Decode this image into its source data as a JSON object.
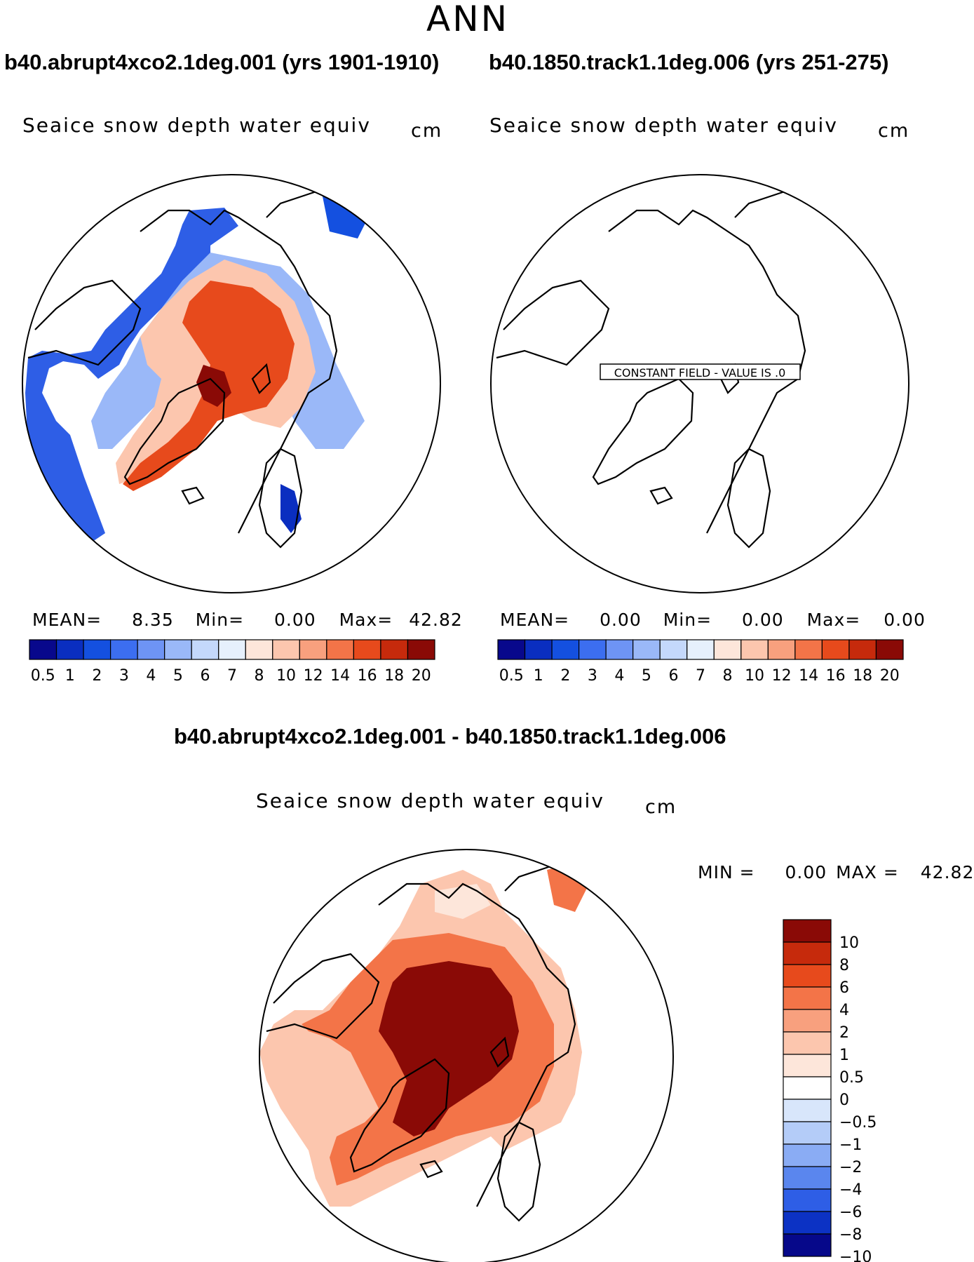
{
  "page": {
    "title": "ANN"
  },
  "panels": {
    "left": {
      "case_title": "b40.abrupt4xco2.1deg.001 (yrs 1901-1910)",
      "var_title": "Seaice snow depth water equiv",
      "units": "cm",
      "mean_label": "MEAN=",
      "mean": "8.35",
      "min_label": "Min=",
      "min": "0.00",
      "max_label": "Max=",
      "max": "42.82"
    },
    "right": {
      "case_title": "b40.1850.track1.1deg.006 (yrs 251-275)",
      "var_title": "Seaice snow depth water equiv",
      "units": "cm",
      "constant_note": "CONSTANT FIELD - VALUE IS .0",
      "mean_label": "MEAN=",
      "mean": "0.00",
      "min_label": "Min=",
      "min": "0.00",
      "max_label": "Max=",
      "max": "0.00"
    },
    "diff": {
      "case_title": "b40.abrupt4xco2.1deg.001 - b40.1850.track1.1deg.006",
      "var_title": "Seaice snow depth water equiv",
      "units": "cm",
      "min_label": "MIN =",
      "min": "0.00",
      "max_label": "MAX =",
      "max": "42.82"
    }
  },
  "chart_data": [
    {
      "type": "heatmap",
      "projection": "north polar stereographic",
      "title": "Seaice snow depth water equiv",
      "units": "cm",
      "colorbar": {
        "orientation": "horizontal",
        "levels": [
          "0.5",
          "1",
          "2",
          "3",
          "4",
          "5",
          "6",
          "7",
          "8",
          "10",
          "12",
          "14",
          "16",
          "18",
          "20"
        ],
        "colors": [
          "#08088c",
          "#0a2ec0",
          "#1450e0",
          "#3c6ef0",
          "#6e94f5",
          "#9ab8f8",
          "#c4d8fb",
          "#e6f0fc",
          "#fde6da",
          "#fcc6ae",
          "#f8a07e",
          "#f37448",
          "#e74a1c",
          "#c62a0c",
          "#8a0a06"
        ]
      },
      "stats": {
        "mean": 8.35,
        "min": 0.0,
        "max": 42.82
      }
    },
    {
      "type": "heatmap",
      "projection": "north polar stereographic",
      "title": "Seaice snow depth water equiv",
      "units": "cm",
      "annotation": "CONSTANT FIELD - VALUE IS .0",
      "colorbar": {
        "orientation": "horizontal",
        "levels": [
          "0.5",
          "1",
          "2",
          "3",
          "4",
          "5",
          "6",
          "7",
          "8",
          "10",
          "12",
          "14",
          "16",
          "18",
          "20"
        ],
        "colors": [
          "#08088c",
          "#0a2ec0",
          "#1450e0",
          "#3c6ef0",
          "#6e94f5",
          "#9ab8f8",
          "#c4d8fb",
          "#e6f0fc",
          "#fde6da",
          "#fcc6ae",
          "#f8a07e",
          "#f37448",
          "#e74a1c",
          "#c62a0c",
          "#8a0a06"
        ]
      },
      "stats": {
        "mean": 0.0,
        "min": 0.0,
        "max": 0.0
      }
    },
    {
      "type": "heatmap",
      "projection": "north polar stereographic",
      "title": "Seaice snow depth water equiv",
      "units": "cm",
      "colorbar": {
        "orientation": "vertical",
        "levels": [
          "10",
          "8",
          "6",
          "4",
          "2",
          "1",
          "0.5",
          "0",
          "−0.5",
          "−1",
          "−2",
          "−4",
          "−6",
          "−8",
          "−10"
        ],
        "colors": [
          "#8a0a06",
          "#c62a0c",
          "#e74a1c",
          "#f37448",
          "#f8a07e",
          "#fcc6ae",
          "#fde6da",
          "#ffffff",
          "#d8e6fb",
          "#b4ccf8",
          "#8aacf4",
          "#5a86ee",
          "#2e5ee6",
          "#0c32c4",
          "#06088a"
        ]
      },
      "stats": {
        "min": 0.0,
        "max": 42.82
      }
    }
  ]
}
